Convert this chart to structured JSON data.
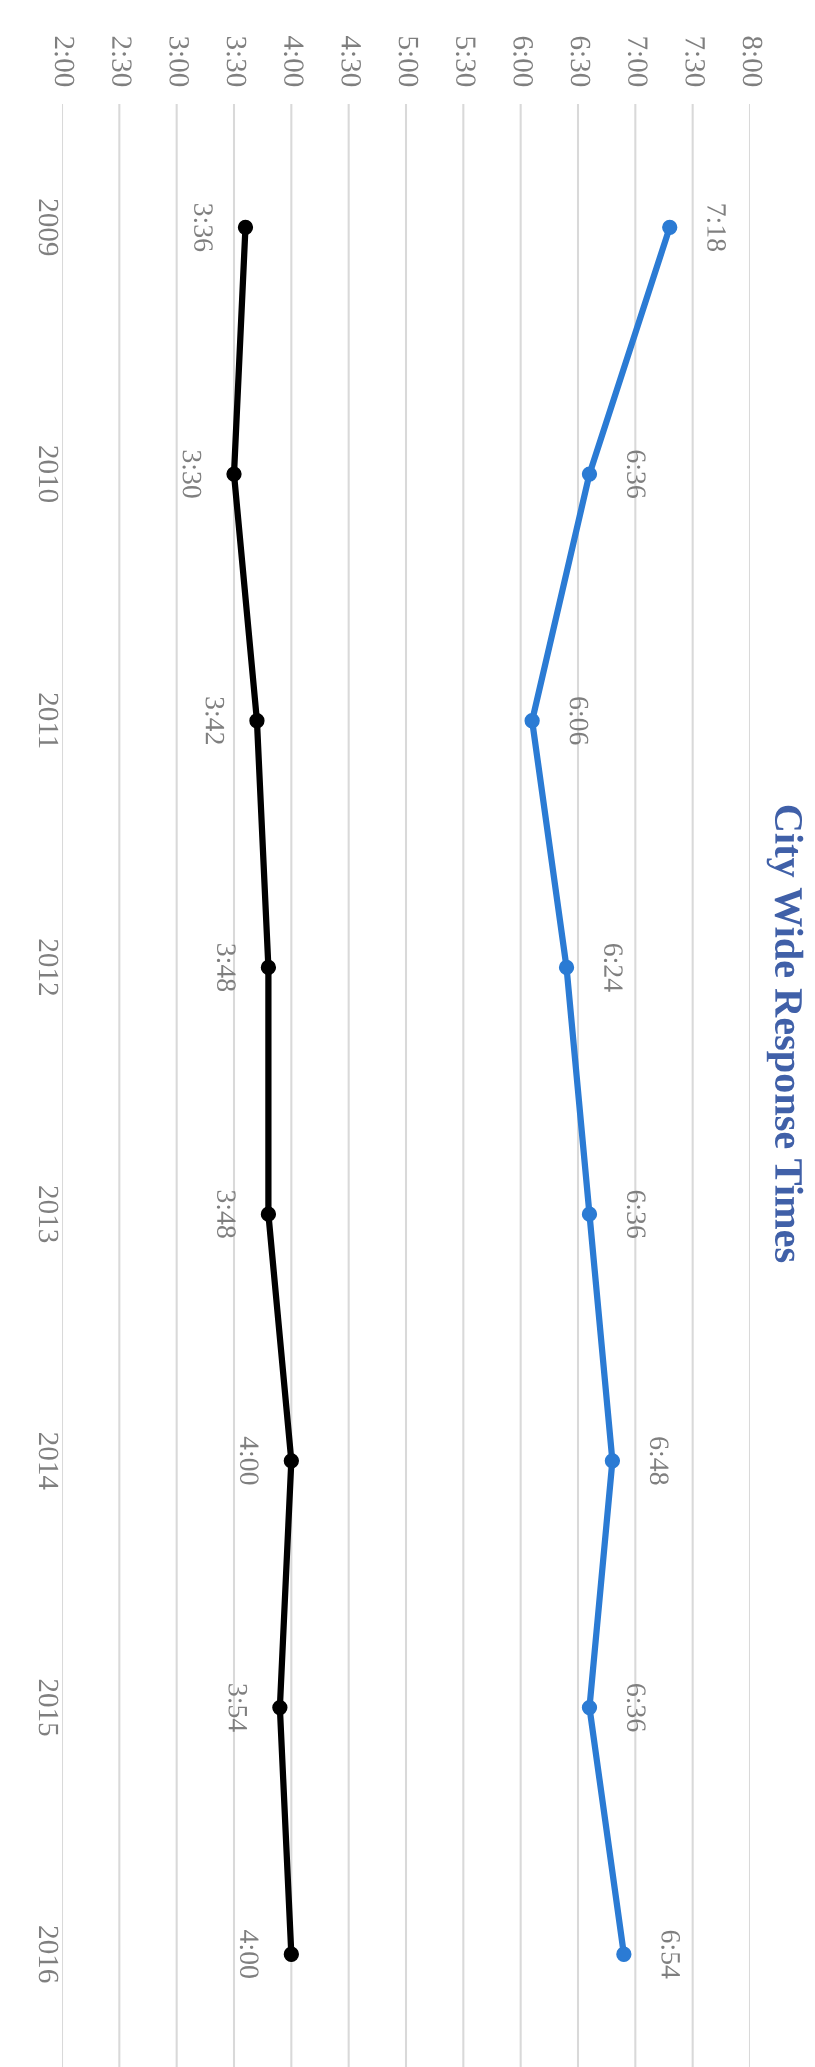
{
  "chart_data": {
    "type": "line",
    "title": "City Wide Response Times",
    "orientation": "horizontal",
    "categories": [
      "2009",
      "2010",
      "2011",
      "2012",
      "2013",
      "2014",
      "2015",
      "2016"
    ],
    "series": [
      {
        "color": "#2b7bd4",
        "values": [
          7.3,
          6.6,
          6.1,
          6.4,
          6.6,
          6.8,
          6.6,
          6.9
        ],
        "value_labels": [
          "7:18",
          "6:36",
          "6:06",
          "6:24",
          "6:36",
          "6:48",
          "6:36",
          "6:54"
        ]
      },
      {
        "color": "#000000",
        "values": [
          3.6,
          3.5,
          3.7,
          3.8,
          3.8,
          4.0,
          3.9,
          4.0
        ],
        "value_labels": [
          "3:36",
          "3:30",
          "3:42",
          "3:48",
          "3:48",
          "4:00",
          "3:54",
          "4:00"
        ]
      }
    ],
    "xlim": [
      2,
      8
    ],
    "xticks": [
      {
        "value": 2,
        "label": "2:00"
      },
      {
        "value": 2.5,
        "label": "2:30"
      },
      {
        "value": 3,
        "label": "3:00"
      },
      {
        "value": 3.5,
        "label": "3:30"
      },
      {
        "value": 4,
        "label": "4:00"
      },
      {
        "value": 4.5,
        "label": "4:30"
      },
      {
        "value": 5,
        "label": "5:00"
      },
      {
        "value": 5.5,
        "label": "5:30"
      },
      {
        "value": 6,
        "label": "6:00"
      },
      {
        "value": 6.5,
        "label": "6:30"
      },
      {
        "value": 7,
        "label": "7:00"
      },
      {
        "value": 7.5,
        "label": "7:30"
      },
      {
        "value": 8,
        "label": "8:00"
      }
    ],
    "grid": "x",
    "marker": "circle",
    "line_style": "solid",
    "legend": false
  }
}
